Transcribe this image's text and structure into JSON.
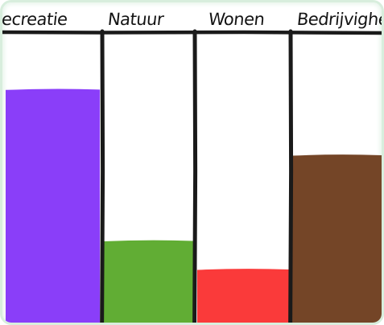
{
  "chart_data": {
    "type": "bar",
    "categories": [
      "Recreatie",
      "Natuur",
      "Wonen",
      "Bedrijvigheid"
    ],
    "values": [
      82,
      29,
      19,
      59
    ],
    "ylim": [
      0,
      100
    ],
    "colors": [
      "#8a3ef9",
      "#61ad34",
      "#fa3a3a",
      "#744527"
    ],
    "grid": false,
    "title": "",
    "xlabel": "",
    "ylabel": ""
  }
}
